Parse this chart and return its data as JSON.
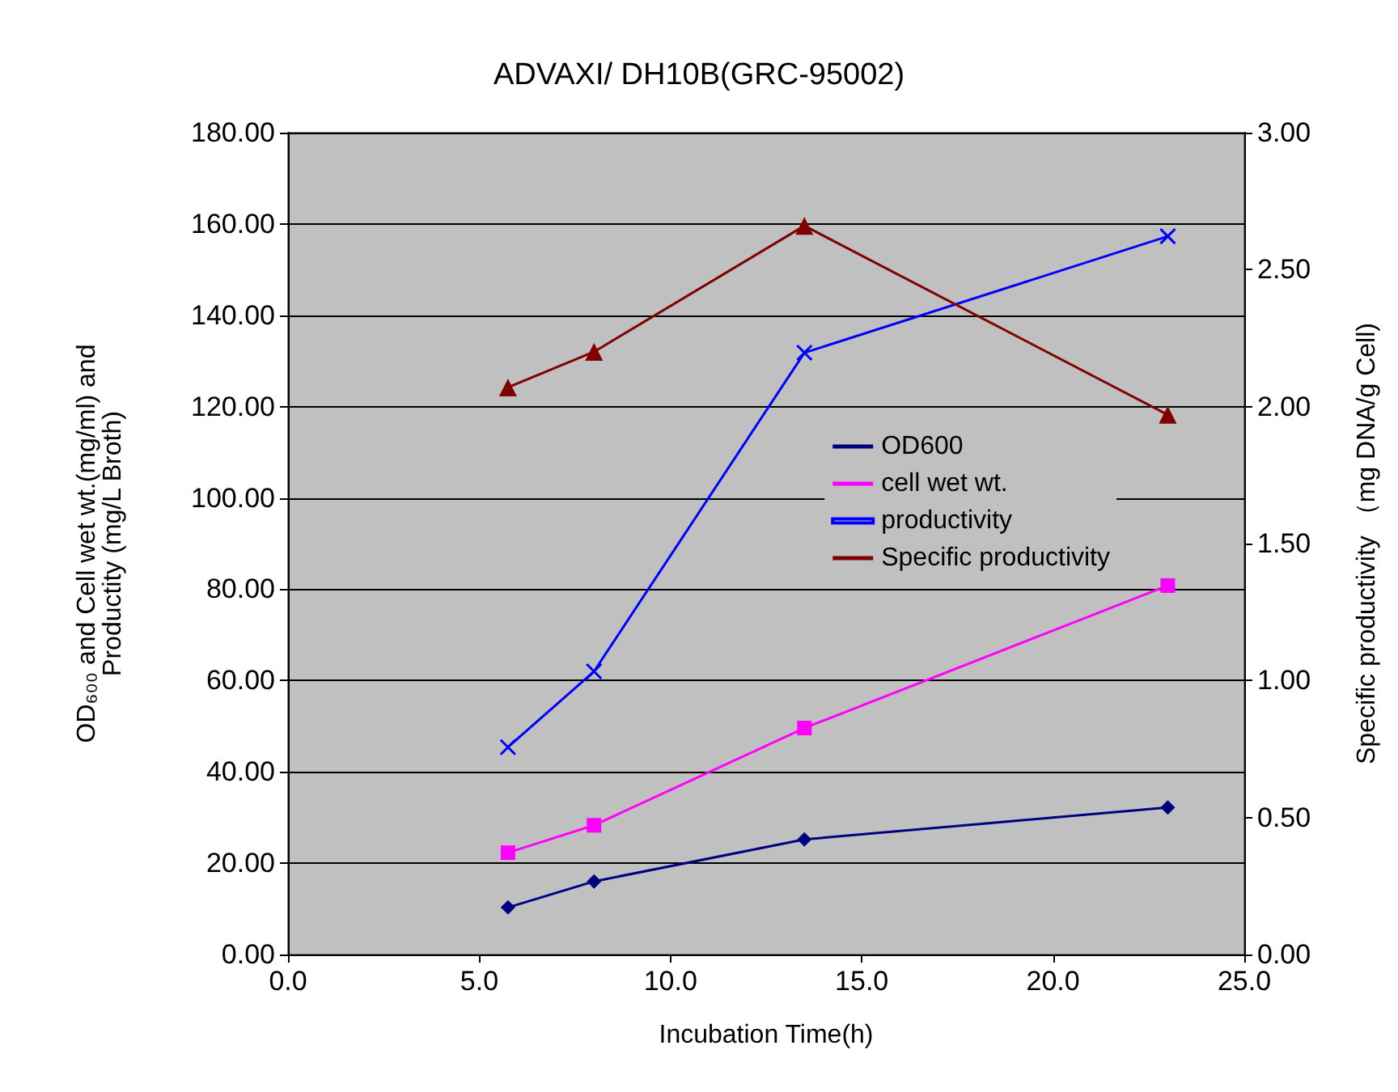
{
  "chart_data": {
    "type": "line",
    "title": "ADVAXI/ DH10B(GRC-95002)",
    "xlabel": "Incubation Time(h)",
    "ylabel": "OD₆₀₀ and Cell wet wt.(mg/ml) and\nProductity (mg/L Broth)",
    "y2label": "Specific productivity （mg DNA/g Cell)",
    "xlim": [
      0,
      25
    ],
    "xticks": [
      {
        "value": 0,
        "label": "0.0"
      },
      {
        "value": 5,
        "label": "5.0"
      },
      {
        "value": 10,
        "label": "10.0"
      },
      {
        "value": 15,
        "label": "15.0"
      },
      {
        "value": 20,
        "label": "20.0"
      },
      {
        "value": 25,
        "label": "25.0"
      }
    ],
    "ylim": [
      0,
      180
    ],
    "yticks": [
      {
        "value": 0,
        "label": "0.00"
      },
      {
        "value": 20,
        "label": "20.00"
      },
      {
        "value": 40,
        "label": "40.00"
      },
      {
        "value": 60,
        "label": "60.00"
      },
      {
        "value": 80,
        "label": "80.00"
      },
      {
        "value": 100,
        "label": "100.00"
      },
      {
        "value": 120,
        "label": "120.00"
      },
      {
        "value": 140,
        "label": "140.00"
      },
      {
        "value": 160,
        "label": "160.00"
      },
      {
        "value": 180,
        "label": "180.00"
      }
    ],
    "y2lim": [
      0,
      3
    ],
    "y2ticks": [
      {
        "value": 0,
        "label": "0.00"
      },
      {
        "value": 0.5,
        "label": "0.50"
      },
      {
        "value": 1,
        "label": "1.00"
      },
      {
        "value": 1.5,
        "label": "1.50"
      },
      {
        "value": 2,
        "label": "2.00"
      },
      {
        "value": 2.5,
        "label": "2.50"
      },
      {
        "value": 3,
        "label": "3.00"
      }
    ],
    "x": [
      5.75,
      8,
      13.5,
      23
    ],
    "grid": "y",
    "legend": "right",
    "series": [
      {
        "name": "OD600",
        "color": "#000080",
        "marker": "diamond",
        "values": [
          10.3,
          16,
          25.2,
          32.2
        ]
      },
      {
        "name": "cell wet wt.",
        "color": "#ff00ff",
        "marker": "square",
        "values": [
          22.3,
          28.3,
          49.6,
          80.8
        ]
      },
      {
        "name": "productivity",
        "color": "#0000ff",
        "marker": "cross",
        "values": [
          45.4,
          62,
          131.8,
          157.3
        ]
      },
      {
        "name": "Specific productivity",
        "color": "#800000",
        "marker": "triangle",
        "axis": "y2",
        "values": [
          2.07,
          2.2,
          2.66,
          1.97
        ]
      }
    ]
  }
}
